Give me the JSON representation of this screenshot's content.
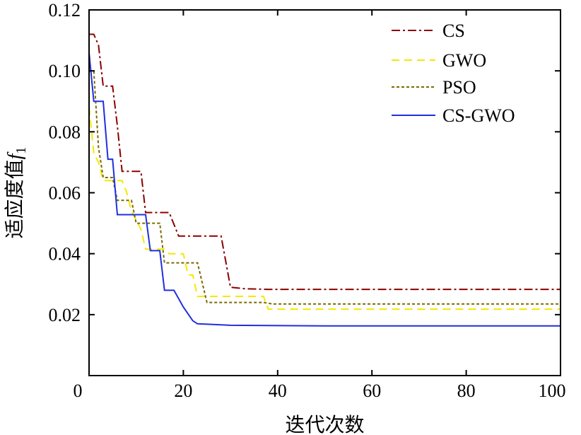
{
  "chart_data": {
    "type": "line",
    "title": "",
    "xlabel": "迭代次数",
    "ylabel": "适应度值",
    "ylabel_symbol": "f",
    "ylabel_subscript": "1",
    "xlim": [
      0,
      100
    ],
    "ylim": [
      0,
      0.12
    ],
    "x_ticks": [
      0,
      20,
      40,
      60,
      80,
      100
    ],
    "y_ticks": [
      0.02,
      0.04,
      0.06,
      0.08,
      0.1,
      0.12
    ],
    "y_tick_labels": [
      "0.02",
      "0.04",
      "0.06",
      "0.08",
      "0.10",
      "0.12"
    ],
    "grid": false,
    "legend_position": "top-right",
    "series": [
      {
        "name": "CS",
        "color": "#8b0000",
        "dash": "dashdot",
        "points": [
          [
            0,
            0.112
          ],
          [
            1,
            0.112
          ],
          [
            2,
            0.1085
          ],
          [
            3,
            0.095
          ],
          [
            5,
            0.095
          ],
          [
            6,
            0.082
          ],
          [
            7,
            0.067
          ],
          [
            9,
            0.067
          ],
          [
            11,
            0.067
          ],
          [
            12,
            0.0535
          ],
          [
            17,
            0.0535
          ],
          [
            19,
            0.0458
          ],
          [
            28,
            0.0458
          ],
          [
            30,
            0.029
          ],
          [
            33,
            0.0285
          ],
          [
            38,
            0.0283
          ],
          [
            100,
            0.0283
          ]
        ]
      },
      {
        "name": "GWO",
        "color": "#f5e800",
        "dash": "dashed",
        "points": [
          [
            0,
            0.088
          ],
          [
            1,
            0.073
          ],
          [
            2,
            0.07
          ],
          [
            3,
            0.064
          ],
          [
            7,
            0.064
          ],
          [
            8,
            0.06
          ],
          [
            9,
            0.054
          ],
          [
            11,
            0.048
          ],
          [
            12,
            0.0415
          ],
          [
            16,
            0.0415
          ],
          [
            17,
            0.04
          ],
          [
            20,
            0.04
          ],
          [
            21,
            0.033
          ],
          [
            22,
            0.033
          ],
          [
            23,
            0.026
          ],
          [
            37,
            0.026
          ],
          [
            38,
            0.0218
          ],
          [
            100,
            0.0218
          ]
        ]
      },
      {
        "name": "PSO",
        "color": "#7a6a00",
        "dash": "dotted",
        "points": [
          [
            0,
            0.1
          ],
          [
            1,
            0.1
          ],
          [
            2,
            0.075
          ],
          [
            3,
            0.065
          ],
          [
            5,
            0.065
          ],
          [
            6,
            0.0575
          ],
          [
            8,
            0.0575
          ],
          [
            9,
            0.0575
          ],
          [
            10,
            0.05
          ],
          [
            15,
            0.05
          ],
          [
            16,
            0.037
          ],
          [
            23,
            0.037
          ],
          [
            25,
            0.024
          ],
          [
            37,
            0.024
          ],
          [
            39,
            0.0235
          ],
          [
            100,
            0.0235
          ]
        ]
      },
      {
        "name": "CS-GWO",
        "color": "#1f2fe0",
        "dash": "solid",
        "points": [
          [
            0,
            0.106
          ],
          [
            1,
            0.09
          ],
          [
            3,
            0.09
          ],
          [
            4,
            0.071
          ],
          [
            5,
            0.071
          ],
          [
            6,
            0.0528
          ],
          [
            12,
            0.0528
          ],
          [
            13,
            0.041
          ],
          [
            15,
            0.041
          ],
          [
            16,
            0.028
          ],
          [
            18,
            0.028
          ],
          [
            20,
            0.0225
          ],
          [
            22,
            0.018
          ],
          [
            23,
            0.017
          ],
          [
            26,
            0.0168
          ],
          [
            30,
            0.0165
          ],
          [
            50,
            0.0163
          ],
          [
            100,
            0.0163
          ]
        ]
      }
    ]
  }
}
